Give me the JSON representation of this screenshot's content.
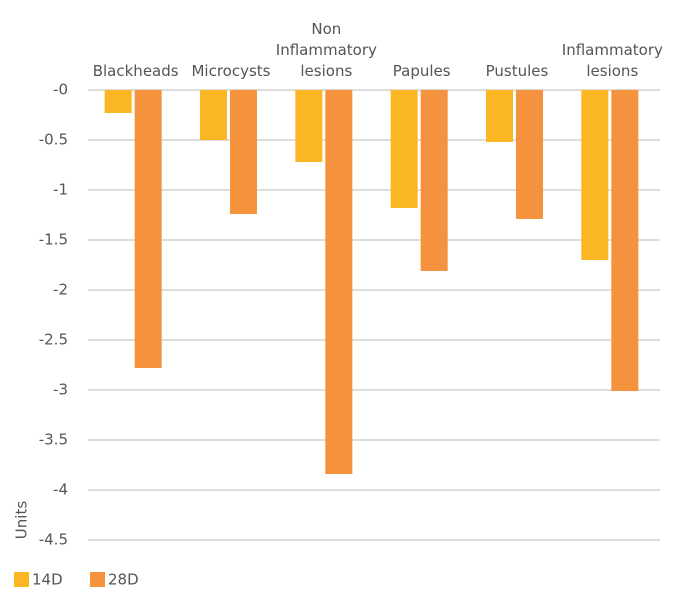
{
  "chart_data": {
    "type": "bar",
    "categories": [
      "Blackheads",
      "Microcysts",
      "Non Inflammatory lesions",
      "Papules",
      "Pustules",
      "Inflammatory lesions"
    ],
    "series": [
      {
        "name": "14D",
        "color": "#fbb624",
        "values": [
          -0.23,
          -0.5,
          -0.72,
          -1.18,
          -0.52,
          -1.7
        ]
      },
      {
        "name": "28D",
        "color": "#f5923e",
        "values": [
          -2.78,
          -1.24,
          -3.84,
          -1.81,
          -1.29,
          -3.01
        ]
      }
    ],
    "ylabel": "Units",
    "ylim": [
      0,
      -4.5
    ],
    "yticks": [
      {
        "value": 0,
        "label": "-0"
      },
      -0.5,
      -1,
      -1.5,
      -2,
      -2.5,
      -3,
      -3.5,
      -4,
      -4.5
    ],
    "grid": true,
    "legend": "bottom-left"
  }
}
